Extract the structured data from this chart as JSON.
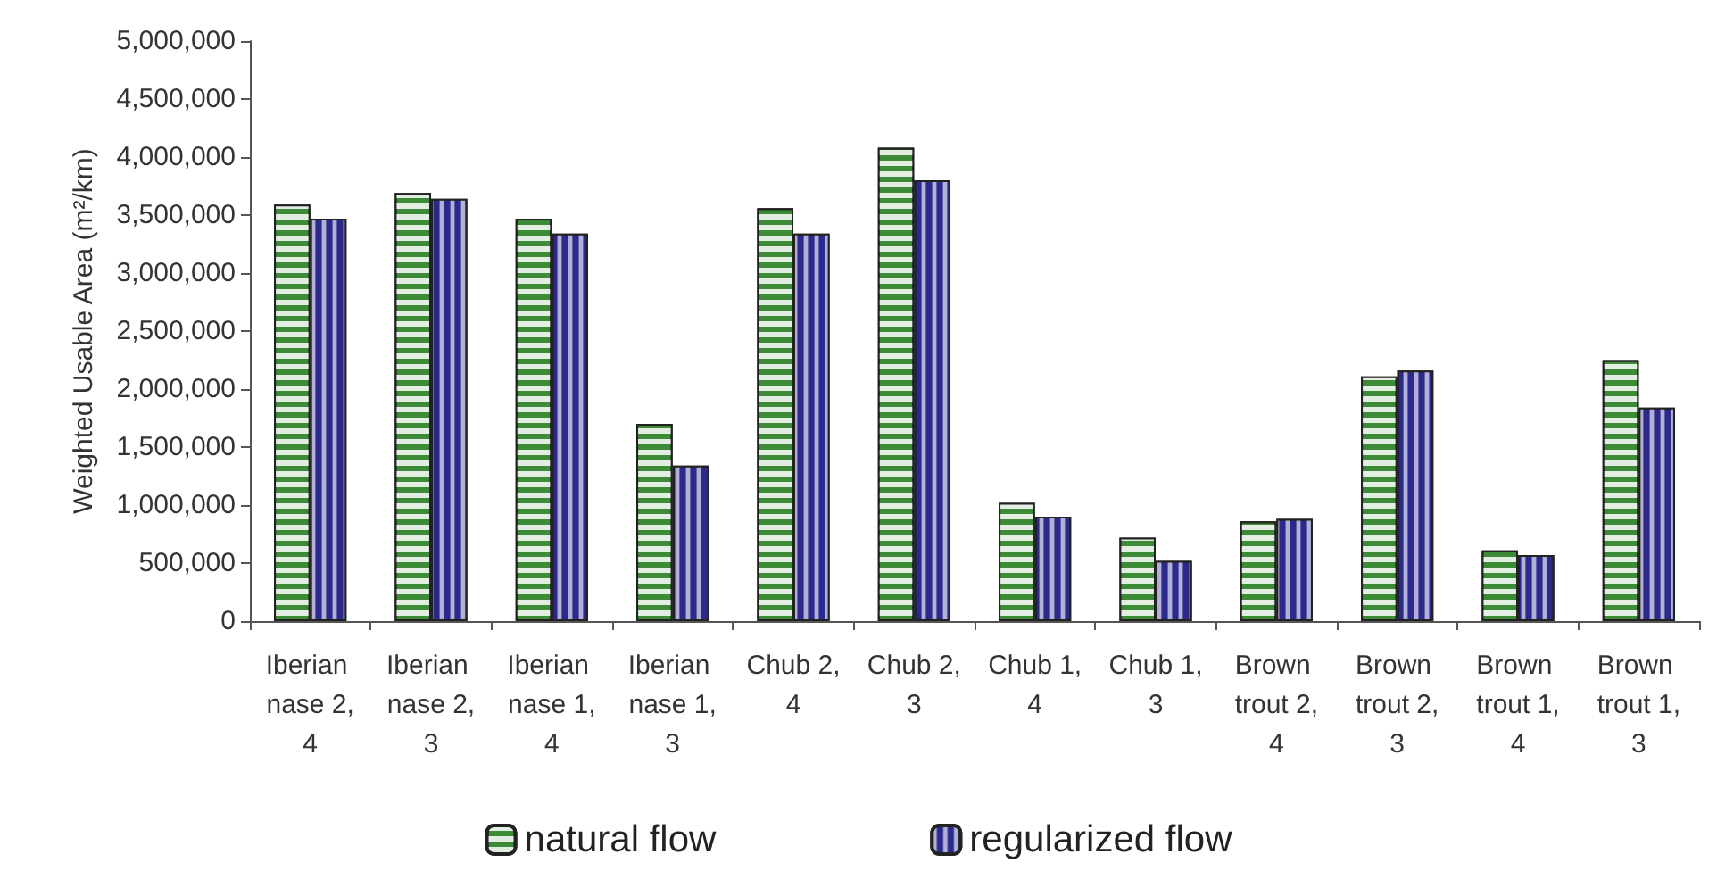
{
  "chart_data": {
    "type": "bar",
    "ylabel": "Weighted Usable Area (m²/km)",
    "categories": [
      "Iberian nase 2,4",
      "Iberian nase 2,3",
      "Iberian nase 1,4",
      "Iberian nase 1,3",
      "Chub 2,4",
      "Chub 2,3",
      "Chub 1,4",
      "Chub 1,3",
      "Brown trout 2,4",
      "Brown trout 2,3",
      "Brown trout 1,4",
      "Brown trout 1,3"
    ],
    "series": [
      {
        "name": "natural flow",
        "color": "#3d8b37",
        "values": [
          3590000,
          3690000,
          3470000,
          1700000,
          3560000,
          4080000,
          1020000,
          720000,
          860000,
          2110000,
          610000,
          2250000
        ]
      },
      {
        "name": "regularized flow",
        "color": "#2b2a8c",
        "values": [
          3470000,
          3640000,
          3340000,
          1340000,
          3340000,
          3800000,
          900000,
          520000,
          880000,
          2160000,
          570000,
          1840000
        ]
      }
    ],
    "ylim": [
      0,
      5000000
    ],
    "yticks": [
      {
        "value": 0,
        "label": "0"
      },
      {
        "value": 500000,
        "label": "500,000"
      },
      {
        "value": 1000000,
        "label": "1,000,000"
      },
      {
        "value": 1500000,
        "label": "1,500,000"
      },
      {
        "value": 2000000,
        "label": "2,000,000"
      },
      {
        "value": 2500000,
        "label": "2,500,000"
      },
      {
        "value": 3000000,
        "label": "3,000,000"
      },
      {
        "value": 3500000,
        "label": "3,500,000"
      },
      {
        "value": 4000000,
        "label": "4,000,000"
      },
      {
        "value": 4500000,
        "label": "4,500,000"
      },
      {
        "value": 5000000,
        "label": "5,000,000"
      }
    ],
    "grid": false,
    "legend": "bottom"
  }
}
